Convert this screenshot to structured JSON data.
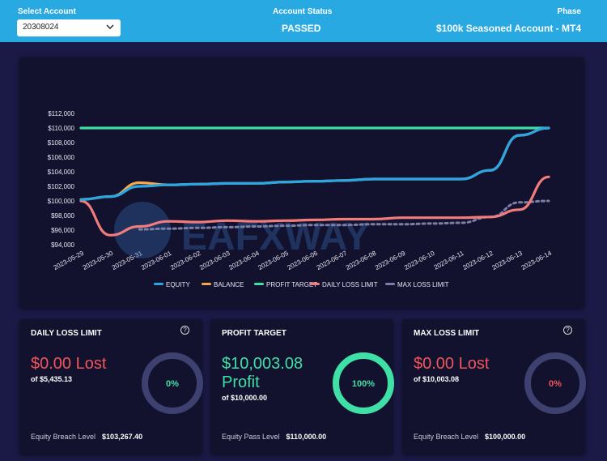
{
  "header": {
    "select_account_label": "Select Account",
    "account_value": "20308024",
    "status_label": "Account Status",
    "status_value": "PASSED",
    "phase_label": "Phase",
    "phase_value": "$100k Seasoned Account - MT4"
  },
  "watermark": "EAFXWAY",
  "chart_data": {
    "type": "line",
    "x": [
      "2023-05-29",
      "2023-05-30",
      "2023-05-31",
      "2023-06-01",
      "2023-06-02",
      "2023-06-03",
      "2023-06-04",
      "2023-06-05",
      "2023-06-06",
      "2023-06-07",
      "2023-06-08",
      "2023-06-09",
      "2023-06-10",
      "2023-06-11",
      "2023-06-12",
      "2023-06-13",
      "2023-06-14"
    ],
    "y_ticks": [
      "$94,000",
      "$96,000",
      "$98,000",
      "$100,000",
      "$102,000",
      "$104,000",
      "$106,000",
      "$108,000",
      "$110,000",
      "$112,000"
    ],
    "ylim": [
      94000,
      112000
    ],
    "series": [
      {
        "name": "EQUITY",
        "color": "#2aa6e0",
        "values": [
          100200,
          100600,
          102000,
          102200,
          102300,
          102400,
          102400,
          102600,
          102700,
          102800,
          103000,
          103000,
          103000,
          103000,
          104200,
          109000,
          110000
        ]
      },
      {
        "name": "BALANCE",
        "color": "#f4a84b",
        "values": [
          100200,
          100600,
          102500,
          102200,
          102300,
          102400,
          102400,
          102600,
          102700,
          102800,
          103000,
          103000,
          103000,
          103000,
          104200,
          109000,
          110000
        ]
      },
      {
        "name": "PROFIT TARGET",
        "color": "#3fe0a6",
        "values": [
          110000,
          110000,
          110000,
          110000,
          110000,
          110000,
          110000,
          110000,
          110000,
          110000,
          110000,
          110000,
          110000,
          110000,
          110000,
          110000,
          110000
        ]
      },
      {
        "name": "DAILY LOSS LIMIT",
        "color": "#f27b7b",
        "values": [
          100000,
          95300,
          96500,
          97200,
          97100,
          97300,
          97200,
          97300,
          97400,
          97500,
          97500,
          97700,
          97700,
          97700,
          97800,
          98800,
          103300
        ]
      },
      {
        "name": "MAX LOSS LIMIT",
        "color": "#7b7fa8",
        "values": [
          null,
          null,
          96100,
          96200,
          96300,
          96400,
          96500,
          96600,
          96700,
          96700,
          96800,
          96800,
          96900,
          97000,
          97800,
          99800,
          100000
        ]
      }
    ],
    "legend_position": "bottom"
  },
  "cards": [
    {
      "title": "DAILY LOSS LIMIT",
      "help": "?",
      "big_line1": "$0.00 Lost",
      "big_line2": "",
      "sub": "of $5,435.13",
      "foot_label": "Equity Breach Level",
      "foot_value": "$103,267.40",
      "ring_pct": "0%",
      "ring_fraction": 0
    },
    {
      "title": "PROFIT TARGET",
      "help": "?",
      "big_line1": "$10,003.08",
      "big_line2": "Profit",
      "sub": "of $10,000.00",
      "foot_label": "Equity Pass Level",
      "foot_value": "$110,000.00",
      "ring_pct": "100%",
      "ring_fraction": 1
    },
    {
      "title": "MAX LOSS LIMIT",
      "help": "?",
      "big_line1": "$0.00 Lost",
      "big_line2": "",
      "sub": "of $10,003.08",
      "foot_label": "Equity Breach Level",
      "foot_value": "$100,000.00",
      "ring_pct": "0%",
      "ring_fraction": 0
    }
  ],
  "colors": {
    "header": "#29a9e2",
    "page": "#1b1a47",
    "card": "#12122f",
    "ring_track": "#3e4170",
    "loss": "#f2555a",
    "profit": "#3fe0a6"
  }
}
